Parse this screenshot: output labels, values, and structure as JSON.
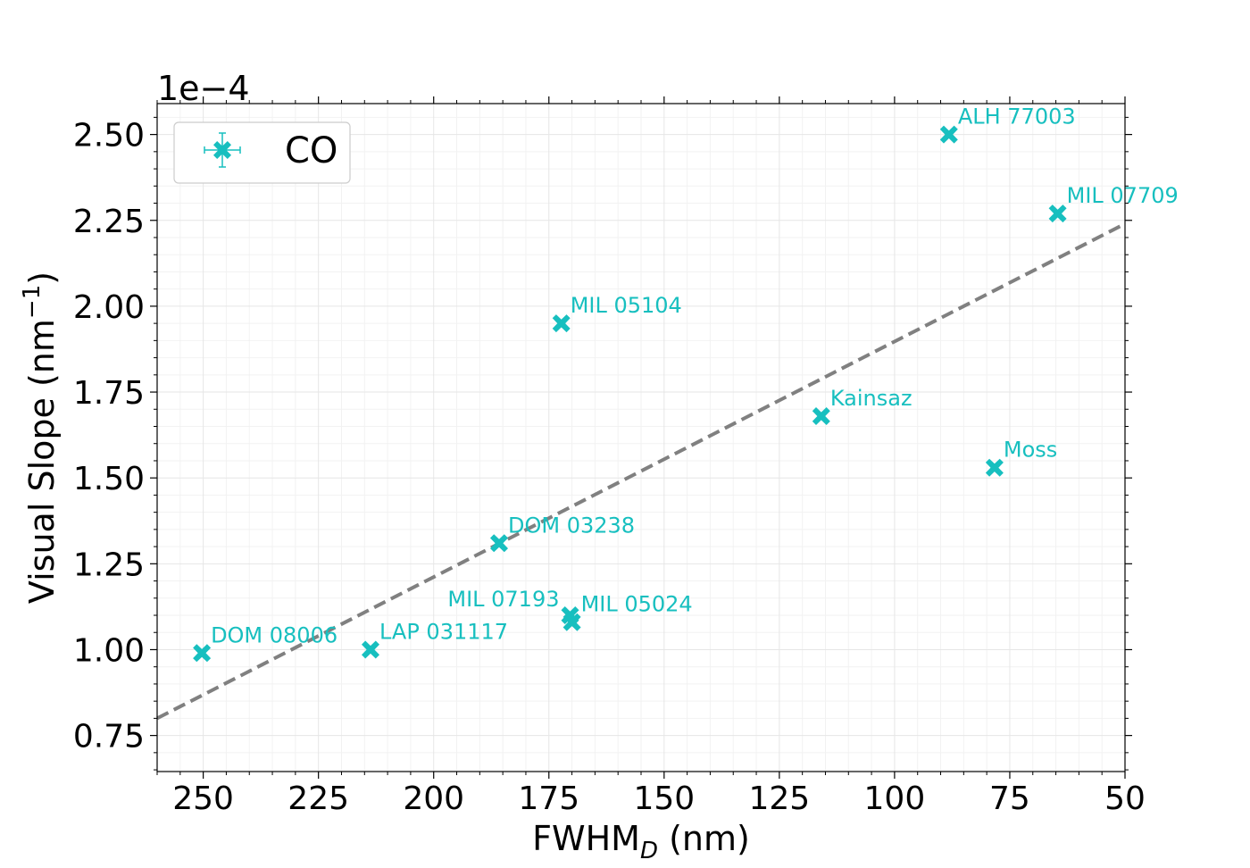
{
  "chart_data": {
    "type": "scatter",
    "title": "",
    "xlabel_main": "FWHM",
    "xlabel_sub": "D",
    "xlabel_unit": " (nm)",
    "ylabel_main": "Visual Slope (nm",
    "ylabel_sup": "−1",
    "ylabel_end": ")",
    "y_offset_text": "1e−4",
    "xlim": [
      260,
      50
    ],
    "ylim": [
      0.645,
      2.59
    ],
    "xticks": [
      250,
      225,
      200,
      175,
      150,
      125,
      100,
      75,
      50
    ],
    "xtick_labels": [
      "250",
      "225",
      "200",
      "175",
      "150",
      "125",
      "100",
      "75",
      "50"
    ],
    "yticks": [
      0.75,
      1.0,
      1.25,
      1.5,
      1.75,
      2.0,
      2.25,
      2.5
    ],
    "ytick_labels": [
      "0.75",
      "1.00",
      "1.25",
      "1.50",
      "1.75",
      "2.00",
      "2.25",
      "2.50"
    ],
    "grid": true,
    "series": [
      {
        "name": "CO",
        "color": "#17bfbf",
        "marker": "X",
        "points": [
          {
            "label": "DOM 08006",
            "x": 250.3,
            "y": 0.99
          },
          {
            "label": "LAP 031117",
            "x": 213.7,
            "y": 1.0
          },
          {
            "label": "DOM 03238",
            "x": 185.8,
            "y": 1.31
          },
          {
            "label": "MIL 05104",
            "x": 172.3,
            "y": 1.95
          },
          {
            "label": "MIL 07193",
            "x": 170.4,
            "y": 1.1
          },
          {
            "label": "MIL 05024",
            "x": 170.0,
            "y": 1.08
          },
          {
            "label": "Kainsaz",
            "x": 115.9,
            "y": 1.68
          },
          {
            "label": "Moss",
            "x": 78.3,
            "y": 1.53
          },
          {
            "label": "ALH 77003",
            "x": 88.2,
            "y": 2.5
          },
          {
            "label": "MIL 07709",
            "x": 64.6,
            "y": 2.27
          }
        ]
      }
    ],
    "fit_line": {
      "style": "dashed",
      "color": "#808080",
      "x": [
        260,
        50
      ],
      "y": [
        0.8,
        2.24
      ]
    },
    "legend": {
      "position": "top-left",
      "entries": [
        "CO"
      ]
    }
  }
}
